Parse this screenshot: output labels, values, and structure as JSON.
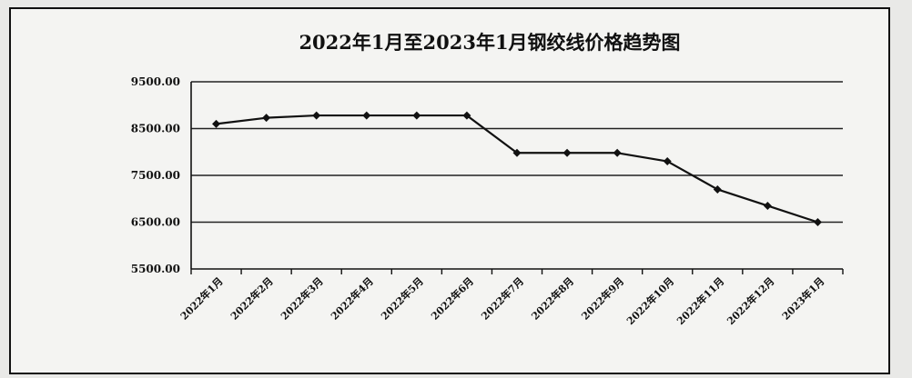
{
  "chart_data": {
    "type": "line",
    "title": "2022年1月至2023年1月钢绞线价格趋势图",
    "xlabel": "",
    "ylabel": "",
    "categories": [
      "2022年1月",
      "2022年2月",
      "2022年3月",
      "2022年4月",
      "2022年5月",
      "2022年6月",
      "2022年7月",
      "2022年8月",
      "2022年9月",
      "2022年10月",
      "2022年11月",
      "2022年12月",
      "2023年1月"
    ],
    "values": [
      8600,
      8730,
      8780,
      8780,
      8780,
      8780,
      7980,
      7980,
      7980,
      7800,
      7200,
      6850,
      6500
    ],
    "y_tick_labels": [
      "9500.00",
      "8500.00",
      "7500.00",
      "6500.00",
      "5500.00"
    ],
    "ylim": [
      5500,
      9500
    ],
    "grid": true,
    "legend": "none",
    "line_color": "#111111",
    "grid_color": "#222222"
  }
}
